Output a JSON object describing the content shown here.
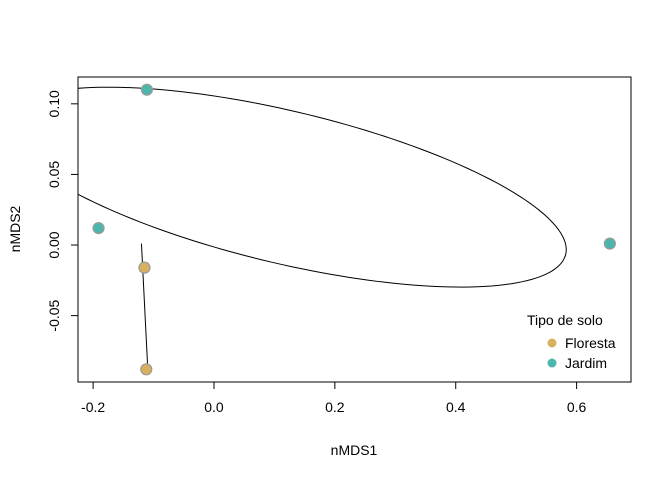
{
  "chart_data": {
    "type": "scatter",
    "title": "",
    "xlabel": "nMDS1",
    "ylabel": "nMDS2",
    "xlim": [
      -0.225,
      0.69
    ],
    "ylim": [
      -0.097,
      0.119
    ],
    "xticks": [
      -0.2,
      0.0,
      0.2,
      0.4,
      0.6
    ],
    "xtick_labels": [
      "-0.2",
      "0.0",
      "0.2",
      "0.4",
      "0.6"
    ],
    "yticks": [
      -0.05,
      0.0,
      0.05,
      0.1
    ],
    "ytick_labels": [
      "-0.05",
      "0.00",
      "0.05",
      "0.10"
    ],
    "grid": false,
    "legend_title": "Tipo de solo",
    "legend_position": "bottom-right",
    "series": [
      {
        "name": "Floresta",
        "color": "#D9B15E",
        "points": [
          {
            "x": -0.115,
            "y": -0.016
          },
          {
            "x": -0.112,
            "y": -0.088
          }
        ]
      },
      {
        "name": "Jardim",
        "color": "#4DB6AC",
        "points": [
          {
            "x": -0.111,
            "y": 0.11
          },
          {
            "x": -0.191,
            "y": 0.012
          },
          {
            "x": 0.655,
            "y": 0.001
          }
        ]
      }
    ],
    "ellipses": [
      {
        "group": "Jardim",
        "center": [
          0.117,
          0.041
        ],
        "semi_major": 0.468,
        "semi_minor": 0.055,
        "angle_deg": -5.5
      }
    ],
    "segments": [
      {
        "group": "Floresta",
        "from": {
          "x": -0.12,
          "y": 0.001
        },
        "to": {
          "x": -0.11,
          "y": -0.084
        }
      }
    ]
  }
}
